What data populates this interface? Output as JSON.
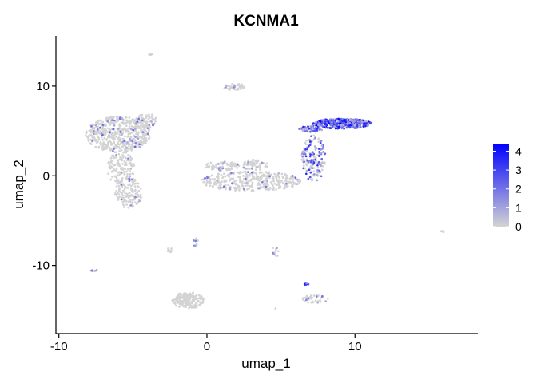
{
  "chart_data": {
    "type": "scatter",
    "title": "KCNMA1",
    "xlabel": "umap_1",
    "ylabel": "umap_2",
    "xlim": [
      -10.2,
      18.3
    ],
    "ylim": [
      -17.6,
      15.6
    ],
    "x_ticks": [
      -10,
      0,
      10
    ],
    "x_tick_labels": [
      "-10",
      "0",
      "10"
    ],
    "y_ticks": [
      -10,
      0,
      10
    ],
    "y_tick_labels": [
      "-10",
      "0",
      "10"
    ],
    "grid": false,
    "legend": {
      "placement": "right",
      "labels": [
        "4",
        "3",
        "2",
        "1",
        "0"
      ],
      "values": [
        4,
        3,
        2,
        1,
        0
      ],
      "min": 0,
      "max": 4.4
    },
    "colors": {
      "low": "#d3d3d3",
      "high": "#0000ff"
    },
    "clusters": [
      {
        "name": "left-top",
        "shape": "ellipse",
        "cx": -6.0,
        "cy": 4.6,
        "rx": 2.2,
        "ry": 2.0,
        "n": 520,
        "expr_frac": 0.1,
        "expr_max": 2.5
      },
      {
        "name": "left-top-ext",
        "shape": "ellipse",
        "cx": -4.2,
        "cy": 6.2,
        "rx": 0.8,
        "ry": 0.9,
        "n": 90,
        "expr_frac": 0.1,
        "expr_max": 2.5
      },
      {
        "name": "left-stem",
        "shape": "ellipse",
        "cx": -5.8,
        "cy": 0.8,
        "rx": 0.9,
        "ry": 2.0,
        "n": 140,
        "expr_frac": 0.06,
        "expr_max": 2.0
      },
      {
        "name": "left-bottom",
        "shape": "ellipse",
        "cx": -5.3,
        "cy": -1.9,
        "rx": 0.9,
        "ry": 1.7,
        "n": 140,
        "expr_frac": 0.06,
        "expr_max": 2.0
      },
      {
        "name": "top-small",
        "shape": "ellipse",
        "cx": 1.9,
        "cy": 9.9,
        "rx": 0.8,
        "ry": 0.35,
        "n": 40,
        "expr_frac": 0.1,
        "expr_max": 1.8
      },
      {
        "name": "top-dot",
        "shape": "ellipse",
        "cx": -3.8,
        "cy": 13.5,
        "rx": 0.12,
        "ry": 0.15,
        "n": 8,
        "expr_frac": 0.0,
        "expr_max": 0.0
      },
      {
        "name": "mid-band",
        "shape": "ellipse",
        "cx": 3.0,
        "cy": -0.6,
        "rx": 3.4,
        "ry": 1.1,
        "n": 360,
        "expr_frac": 0.08,
        "expr_max": 2.5
      },
      {
        "name": "mid-left-arm",
        "shape": "ellipse",
        "cx": 1.0,
        "cy": 1.1,
        "rx": 1.2,
        "ry": 0.5,
        "n": 70,
        "expr_frac": 0.08,
        "expr_max": 2.0
      },
      {
        "name": "mid-top-blob",
        "shape": "ellipse",
        "cx": 3.2,
        "cy": 1.2,
        "rx": 0.9,
        "ry": 0.6,
        "n": 60,
        "expr_frac": 0.08,
        "expr_max": 2.0
      },
      {
        "name": "right-stalk",
        "shape": "ellipse",
        "cx": 7.2,
        "cy": 1.9,
        "rx": 0.8,
        "ry": 2.6,
        "n": 160,
        "expr_frac": 0.55,
        "expr_max": 3.5
      },
      {
        "name": "right-top",
        "shape": "ellipse",
        "cx": 9.1,
        "cy": 5.8,
        "rx": 2.0,
        "ry": 0.55,
        "n": 380,
        "expr_frac": 0.97,
        "expr_max": 4.4
      },
      {
        "name": "right-top-left",
        "shape": "ellipse",
        "cx": 7.0,
        "cy": 5.2,
        "rx": 0.8,
        "ry": 0.35,
        "n": 60,
        "expr_frac": 0.85,
        "expr_max": 3.8
      },
      {
        "name": "bottom-center",
        "shape": "ellipse",
        "cx": -1.3,
        "cy": -13.9,
        "rx": 1.1,
        "ry": 0.9,
        "n": 190,
        "expr_frac": 0.0,
        "expr_max": 0.0
      },
      {
        "name": "bottom-right-small",
        "shape": "ellipse",
        "cx": 7.3,
        "cy": -13.8,
        "rx": 0.9,
        "ry": 0.5,
        "n": 40,
        "expr_frac": 0.2,
        "expr_max": 2.5
      },
      {
        "name": "bottom-right-dot",
        "shape": "ellipse",
        "cx": 6.7,
        "cy": -12.1,
        "rx": 0.15,
        "ry": 0.12,
        "n": 10,
        "expr_frac": 1.0,
        "expr_max": 4.4
      },
      {
        "name": "small-1",
        "shape": "ellipse",
        "cx": -2.5,
        "cy": -8.3,
        "rx": 0.15,
        "ry": 0.3,
        "n": 10,
        "expr_frac": 0.3,
        "expr_max": 2.0
      },
      {
        "name": "small-2",
        "shape": "ellipse",
        "cx": -0.8,
        "cy": -7.3,
        "rx": 0.2,
        "ry": 0.5,
        "n": 9,
        "expr_frac": 0.3,
        "expr_max": 2.0
      },
      {
        "name": "small-3",
        "shape": "ellipse",
        "cx": 4.6,
        "cy": -8.5,
        "rx": 0.35,
        "ry": 0.5,
        "n": 12,
        "expr_frac": 0.4,
        "expr_max": 2.5
      },
      {
        "name": "small-4",
        "shape": "ellipse",
        "cx": -7.7,
        "cy": -10.5,
        "rx": 0.3,
        "ry": 0.15,
        "n": 10,
        "expr_frac": 0.5,
        "expr_max": 2.5
      },
      {
        "name": "small-5",
        "shape": "ellipse",
        "cx": 15.9,
        "cy": -6.2,
        "rx": 0.15,
        "ry": 0.1,
        "n": 4,
        "expr_frac": 0.0,
        "expr_max": 0.0
      },
      {
        "name": "small-6",
        "shape": "ellipse",
        "cx": 4.6,
        "cy": -14.8,
        "rx": 0.05,
        "ry": 0.05,
        "n": 1,
        "expr_frac": 0.0,
        "expr_max": 0.0
      }
    ]
  }
}
